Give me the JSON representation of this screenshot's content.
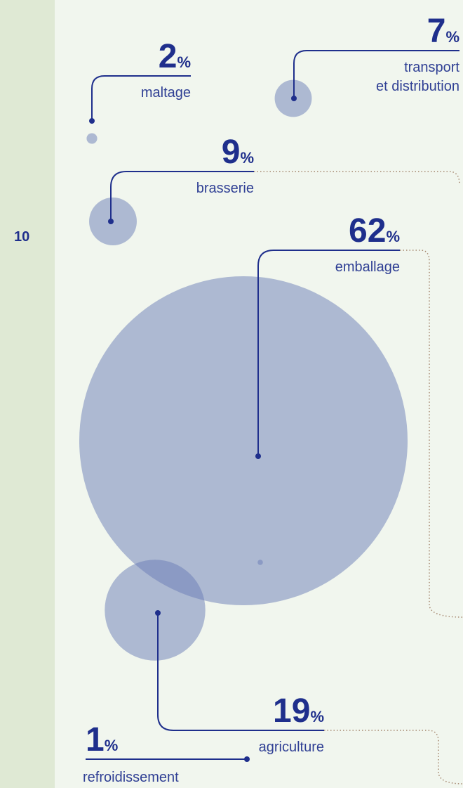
{
  "page_number": "10",
  "chart_data": {
    "type": "bubble",
    "unit": "%",
    "categories": [
      "maltage",
      "transport et distribution",
      "brasserie",
      "emballage",
      "agriculture",
      "refroidissement"
    ],
    "values": [
      2,
      7,
      9,
      62,
      19,
      1
    ],
    "color": "#6a7bb5",
    "line_color": "#1f2f8c"
  }
}
